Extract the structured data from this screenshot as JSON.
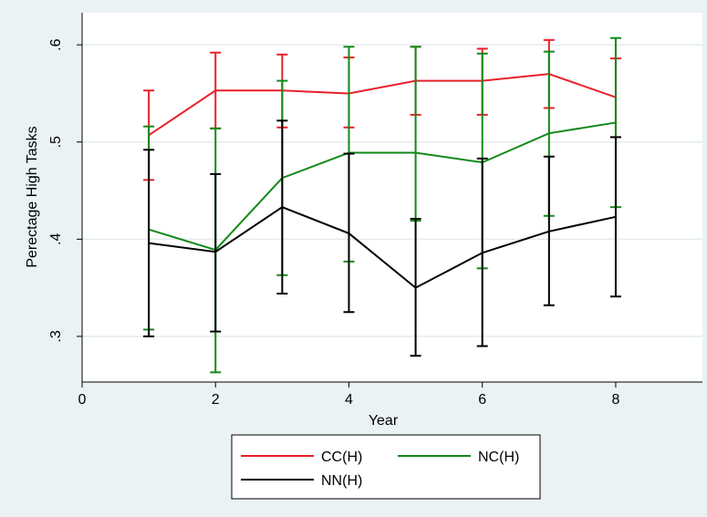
{
  "chart_data": {
    "type": "line",
    "title": "",
    "xlabel": "Year",
    "ylabel": "Perectage High Tasks",
    "xlim": [
      0,
      9.3
    ],
    "ylim": [
      0.253,
      0.633
    ],
    "x_ticks": [
      0,
      2,
      4,
      6,
      8
    ],
    "y_ticks": [
      0.3,
      0.4,
      0.5,
      0.6
    ],
    "y_tick_labels": [
      ".3",
      ".4",
      ".5",
      ".6"
    ],
    "grid": true,
    "legend_position": "bottom",
    "x": [
      1,
      2,
      3,
      4,
      5,
      6,
      7,
      8
    ],
    "series": [
      {
        "name": "CC(H)",
        "color": "#e8202a",
        "values": [
          0.507,
          0.553,
          0.553,
          0.55,
          0.563,
          0.563,
          0.57,
          0.546
        ],
        "lower": [
          0.461,
          0.514,
          0.515,
          0.515,
          0.528,
          0.528,
          0.535,
          0.505
        ],
        "upper": [
          0.553,
          0.592,
          0.59,
          0.587,
          0.598,
          0.596,
          0.605,
          0.586
        ]
      },
      {
        "name": "NC(H)",
        "color": "#118a18",
        "values": [
          0.41,
          0.389,
          0.463,
          0.489,
          0.489,
          0.479,
          0.509,
          0.52
        ],
        "lower": [
          0.307,
          0.263,
          0.363,
          0.377,
          0.419,
          0.37,
          0.424,
          0.433
        ],
        "upper": [
          0.516,
          0.514,
          0.563,
          0.598,
          0.598,
          0.591,
          0.593,
          0.607
        ]
      },
      {
        "name": "NN(H)",
        "color": "#000000",
        "values": [
          0.396,
          0.387,
          0.433,
          0.406,
          0.35,
          0.386,
          0.408,
          0.423
        ],
        "lower": [
          0.3,
          0.305,
          0.344,
          0.325,
          0.28,
          0.29,
          0.332,
          0.341
        ],
        "upper": [
          0.492,
          0.467,
          0.522,
          0.488,
          0.421,
          0.483,
          0.485,
          0.505
        ]
      }
    ]
  }
}
